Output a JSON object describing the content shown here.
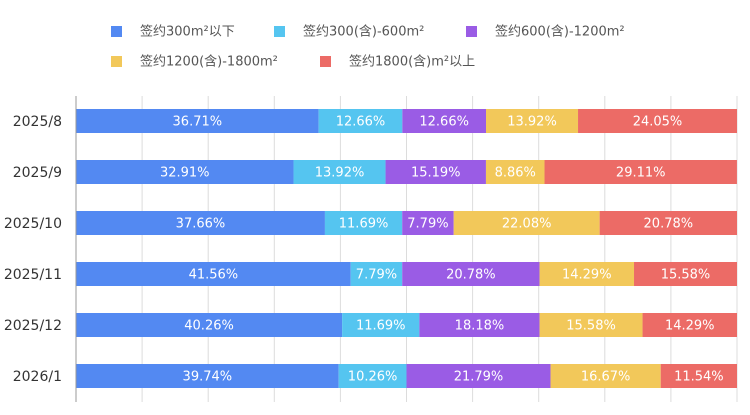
{
  "chart_data": {
    "type": "bar",
    "orientation": "horizontal",
    "stacked": true,
    "title": "",
    "xlabel": "",
    "ylabel": "",
    "xlim": [
      0,
      100
    ],
    "grid": true,
    "legend_position": "top",
    "categories": [
      "2025/8",
      "2025/9",
      "2025/10",
      "2025/11",
      "2025/12",
      "2026/1"
    ],
    "series": [
      {
        "name": "签约300m²以下",
        "color": "#5389f2",
        "values": [
          36.71,
          32.91,
          37.66,
          41.56,
          40.26,
          39.74
        ],
        "labels": [
          "36.71%",
          "32.91%",
          "37.66%",
          "41.56%",
          "40.26%",
          "39.74%"
        ]
      },
      {
        "name": "签约300(含)-600m²",
        "color": "#55c5f0",
        "values": [
          12.66,
          13.92,
          11.69,
          7.79,
          11.69,
          10.26
        ],
        "labels": [
          "12.66%",
          "13.92%",
          "11.69%",
          "7.79%",
          "11.69%",
          "10.26%"
        ]
      },
      {
        "name": "签约600(含)-1200m²",
        "color": "#9a5ce5",
        "values": [
          12.66,
          15.19,
          7.79,
          20.78,
          18.18,
          21.79
        ],
        "labels": [
          "12.66%",
          "15.19%",
          "7.79%",
          "20.78%",
          "18.18%",
          "21.79%"
        ]
      },
      {
        "name": "签约1200(含)-1800m²",
        "color": "#f2c85a",
        "values": [
          13.92,
          8.86,
          22.08,
          14.29,
          15.58,
          16.67
        ],
        "labels": [
          "13.92%",
          "8.86%",
          "22.08%",
          "14.29%",
          "15.58%",
          "16.67%"
        ]
      },
      {
        "name": "签约1800(含)m²以上",
        "color": "#ec6b66",
        "values": [
          24.05,
          29.11,
          20.78,
          15.58,
          14.29,
          11.54
        ],
        "labels": [
          "24.05%",
          "29.11%",
          "20.78%",
          "15.58%",
          "14.29%",
          "11.54%"
        ]
      }
    ]
  }
}
